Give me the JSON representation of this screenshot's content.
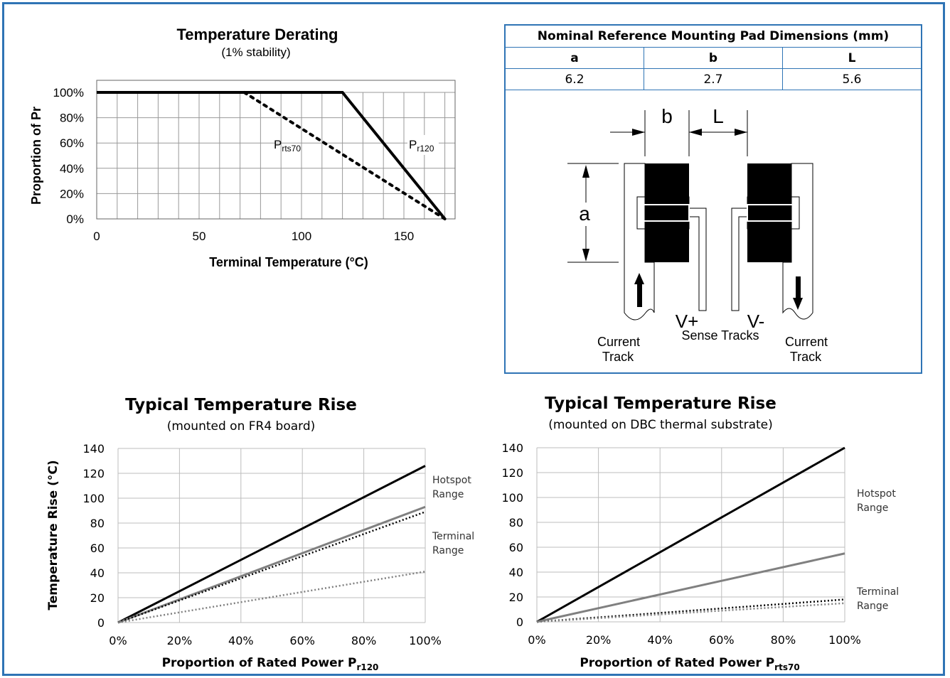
{
  "pad_table": {
    "title": "Nominal Reference Mounting Pad Dimensions (mm)",
    "headers": [
      "a",
      "b",
      "L"
    ],
    "values": [
      "6.2",
      "2.7",
      "5.6"
    ]
  },
  "pad_diagram": {
    "label_b": "b",
    "label_L": "L",
    "label_a": "a",
    "label_vplus": "V+",
    "label_vminus": "V-",
    "label_sense": "Sense Tracks",
    "label_current_left": "Current\nTrack",
    "label_current_right": "Current\nTrack"
  },
  "chart_data": [
    {
      "type": "line",
      "title": "Temperature Derating",
      "subtitle": "(1% stability)",
      "xlabel": "Terminal Temperature (°C)",
      "ylabel": "Proportion of Pr",
      "xlim": [
        0,
        175
      ],
      "ylim": [
        0,
        100
      ],
      "xticks": [
        "0",
        "50",
        "100",
        "150"
      ],
      "yticks": [
        "0%",
        "20%",
        "40%",
        "60%",
        "80%",
        "100%"
      ],
      "grid": true,
      "series": [
        {
          "name": "Pr120",
          "style": "solid",
          "color": "#000000",
          "x": [
            0,
            120,
            170
          ],
          "y": [
            100,
            100,
            0
          ]
        },
        {
          "name": "Prts70",
          "style": "dotted",
          "color": "#000000",
          "x": [
            72,
            170
          ],
          "y": [
            100,
            0
          ]
        }
      ],
      "annotations": [
        {
          "text": "P",
          "sub": "rts70"
        },
        {
          "text": "P",
          "sub": "r120"
        }
      ]
    },
    {
      "type": "line",
      "title": "Typical Temperature Rise",
      "subtitle": "(mounted on FR4 board)",
      "xlabel": "Proportion of Rated Power P",
      "xlabel_sub": "r120",
      "ylabel": "Temperature Rise (°C)",
      "xlim": [
        0,
        100
      ],
      "ylim": [
        0,
        140
      ],
      "xticks": [
        "0%",
        "20%",
        "40%",
        "60%",
        "80%",
        "100%"
      ],
      "yticks": [
        "0",
        "20",
        "40",
        "60",
        "80",
        "100",
        "120",
        "140"
      ],
      "grid": true,
      "series": [
        {
          "style": "solid",
          "color": "#000000",
          "x": [
            0,
            100
          ],
          "y": [
            0,
            126
          ]
        },
        {
          "style": "solid",
          "color": "#808080",
          "x": [
            0,
            100
          ],
          "y": [
            0,
            93
          ]
        },
        {
          "style": "dotted",
          "color": "#000000",
          "x": [
            0,
            100
          ],
          "y": [
            0,
            89
          ]
        },
        {
          "style": "dotted",
          "color": "#808080",
          "x": [
            0,
            100
          ],
          "y": [
            0,
            41
          ]
        }
      ],
      "annotations": [
        "Hotspot\nRange",
        "Terminal\nRange"
      ]
    },
    {
      "type": "line",
      "title": "Typical Temperature Rise",
      "subtitle": "(mounted on DBC thermal substrate)",
      "xlabel": "Proportion of Rated Power P",
      "xlabel_sub": "rts70",
      "xlim": [
        0,
        100
      ],
      "ylim": [
        0,
        140
      ],
      "xticks": [
        "0%",
        "20%",
        "40%",
        "60%",
        "80%",
        "100%"
      ],
      "yticks": [
        "0",
        "20",
        "40",
        "60",
        "80",
        "100",
        "120",
        "140"
      ],
      "grid": true,
      "series": [
        {
          "style": "solid",
          "color": "#000000",
          "x": [
            0,
            100
          ],
          "y": [
            0,
            140
          ]
        },
        {
          "style": "solid",
          "color": "#808080",
          "x": [
            0,
            100
          ],
          "y": [
            0,
            55
          ]
        },
        {
          "style": "dotted",
          "color": "#000000",
          "x": [
            0,
            100
          ],
          "y": [
            0,
            18
          ]
        },
        {
          "style": "dotted",
          "color": "#808080",
          "x": [
            0,
            100
          ],
          "y": [
            0,
            15
          ]
        }
      ],
      "annotations": [
        "Hotspot\nRange",
        "Terminal\nRange"
      ]
    }
  ]
}
